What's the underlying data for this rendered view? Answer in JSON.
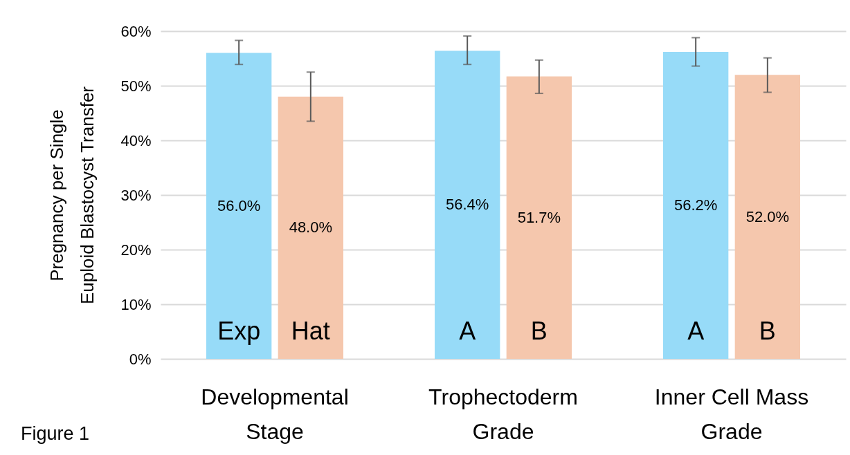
{
  "chart_data": {
    "type": "bar",
    "ylabel": "Pregnancy per Single Euploid Blastocyst Transfer",
    "categories": [
      "Developmental Stage",
      "Trophectoderm Grade",
      "Inner Cell Mass Grade"
    ],
    "series": [
      {
        "color": "#97dbf8",
        "values": [
          56.0,
          56.4,
          56.2
        ],
        "value_labels": [
          "56.0%",
          "56.4%",
          "56.2%"
        ],
        "errors": [
          [
            53.9,
            58.3
          ],
          [
            53.9,
            59.1
          ],
          [
            53.6,
            58.8
          ]
        ]
      },
      {
        "color": "#f5c7ad",
        "values": [
          48.0,
          51.7,
          52.0
        ],
        "value_labels": [
          "48.0%",
          "51.7%",
          "52.0%"
        ],
        "errors": [
          [
            43.5,
            52.5
          ],
          [
            48.6,
            54.7
          ],
          [
            48.8,
            55.1
          ]
        ]
      }
    ],
    "ylim": [
      0,
      60
    ],
    "yticks": [
      {
        "value": 0,
        "label": "0%"
      },
      {
        "value": 10,
        "label": "10%"
      },
      {
        "value": 20,
        "label": "20%"
      },
      {
        "value": 30,
        "label": "30%"
      },
      {
        "value": 40,
        "label": "40%"
      },
      {
        "value": 50,
        "label": "50%"
      },
      {
        "value": 60,
        "label": "60%"
      }
    ],
    "grid": "y",
    "legend": false,
    "annotations": [
      {
        "text": "Exp",
        "x": "Developmental Stage",
        "y": 5
      },
      {
        "text": "Hat",
        "x": "Developmental Stage",
        "y": 5
      },
      {
        "text": "A",
        "x": "Trophectoderm Grade",
        "y": 5
      },
      {
        "text": "B",
        "x": "Trophectoderm Grade",
        "y": 5
      },
      {
        "text": "A",
        "x": "Inner Cell Mass Grade",
        "y": 5
      },
      {
        "text": "B",
        "x": "Inner Cell Mass Grade",
        "y": 5
      },
      "Figure 1"
    ]
  }
}
